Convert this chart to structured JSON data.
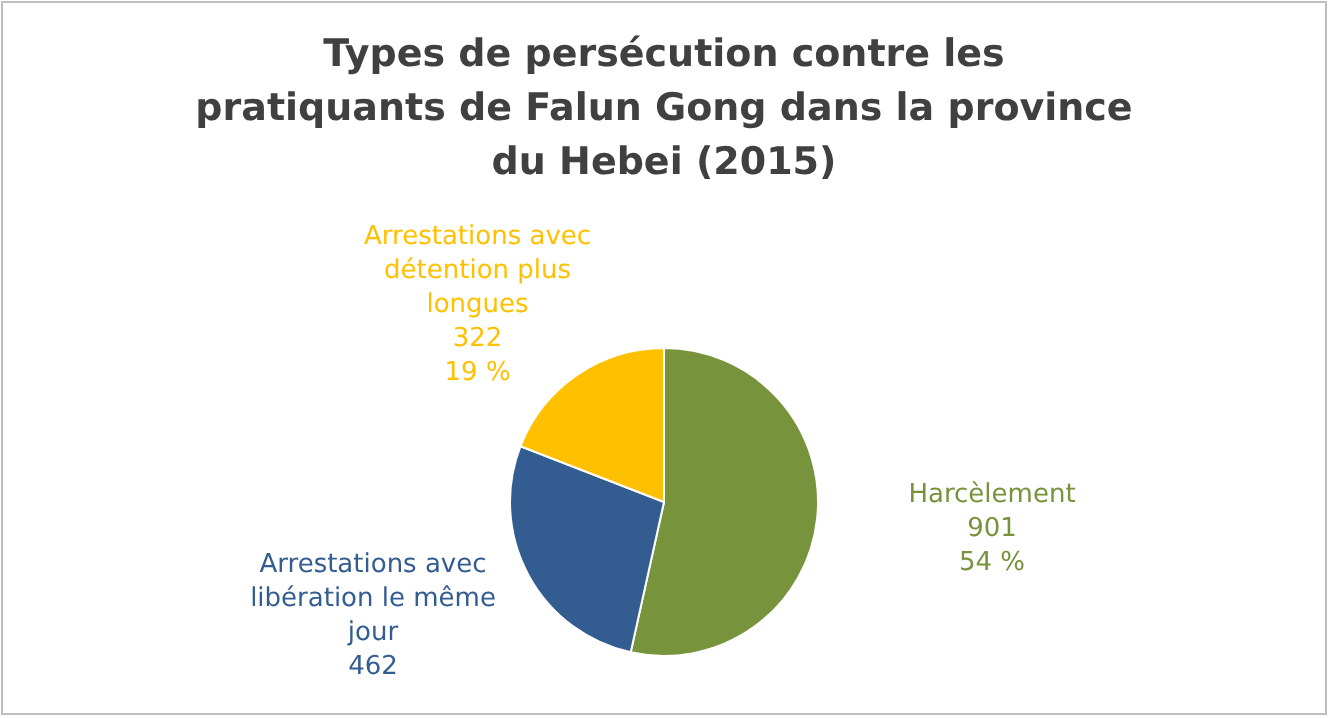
{
  "chart_data": {
    "type": "pie",
    "title": "Types de persécution contre les pratiquants de Falun Gong dans la province du Hebei (2015)",
    "categories": [
      "Harcèlement",
      "Arrestations avec libération le même jour",
      "Arrestations avec détention plus longues"
    ],
    "values": [
      901,
      462,
      322
    ],
    "colors": [
      "#77933c",
      "#335d91",
      "#ffc000"
    ],
    "value_labels": [
      "901\n54 %",
      "462",
      "322\n19 %"
    ],
    "legend": false
  }
}
